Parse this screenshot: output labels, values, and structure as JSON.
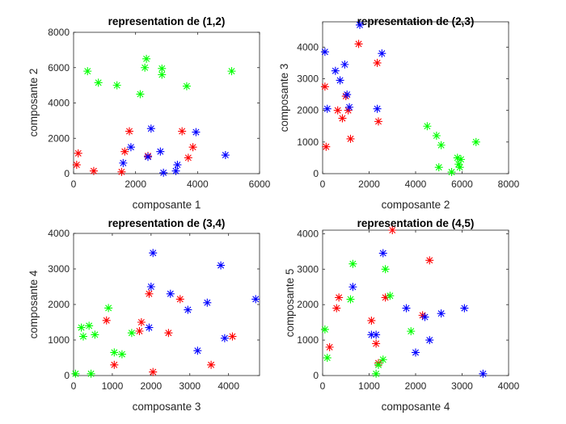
{
  "figure": {
    "background": "#ffffff"
  },
  "colors": {
    "group1": "#ff0000",
    "group2": "#0000ff",
    "group3": "#00ff00"
  },
  "chart_data": [
    {
      "type": "scatter",
      "title": "representation de (1,2)",
      "xlabel": "composante 1",
      "ylabel": "composante 2",
      "xlim": [
        0,
        6000
      ],
      "ylim": [
        0,
        8000
      ],
      "xticks": [
        0,
        2000,
        4000,
        6000
      ],
      "yticks": [
        0,
        2000,
        4000,
        6000,
        8000
      ],
      "marker": "*",
      "series": [
        {
          "color": "#ff0000",
          "points": [
            [
              150,
              1150
            ],
            [
              100,
              500
            ],
            [
              650,
              150
            ],
            [
              1550,
              100
            ],
            [
              1650,
              1250
            ],
            [
              1800,
              2400
            ],
            [
              2400,
              1000
            ],
            [
              3500,
              2400
            ],
            [
              3700,
              900
            ],
            [
              3850,
              1500
            ]
          ]
        },
        {
          "color": "#0000ff",
          "points": [
            [
              1600,
              600
            ],
            [
              1850,
              1500
            ],
            [
              2400,
              950
            ],
            [
              2500,
              2550
            ],
            [
              2800,
              1250
            ],
            [
              2900,
              50
            ],
            [
              3300,
              150
            ],
            [
              3350,
              500
            ],
            [
              3950,
              2350
            ],
            [
              4900,
              1050
            ]
          ]
        },
        {
          "color": "#00ff00",
          "points": [
            [
              450,
              5800
            ],
            [
              800,
              5150
            ],
            [
              1400,
              5000
            ],
            [
              2150,
              4500
            ],
            [
              2300,
              6000
            ],
            [
              2350,
              6500
            ],
            [
              2850,
              5950
            ],
            [
              2850,
              5600
            ],
            [
              3650,
              4950
            ],
            [
              5100,
              5800
            ]
          ]
        }
      ]
    },
    {
      "type": "scatter",
      "title": "representation de (2,3)",
      "xlabel": "composante 2",
      "ylabel": "composante 3",
      "xlim": [
        0,
        8000
      ],
      "ylim": [
        0,
        4800
      ],
      "xticks": [
        0,
        2000,
        4000,
        6000,
        8000
      ],
      "yticks": [
        0,
        1000,
        2000,
        3000,
        4000
      ],
      "marker": "*",
      "series": [
        {
          "color": "#ff0000",
          "points": [
            [
              100,
              2750
            ],
            [
              150,
              850
            ],
            [
              650,
              2000
            ],
            [
              850,
              1750
            ],
            [
              1000,
              2450
            ],
            [
              1100,
              2000
            ],
            [
              1200,
              1100
            ],
            [
              1550,
              4100
            ],
            [
              2350,
              3500
            ],
            [
              2400,
              1650
            ]
          ]
        },
        {
          "color": "#0000ff",
          "points": [
            [
              100,
              3850
            ],
            [
              200,
              2050
            ],
            [
              550,
              3250
            ],
            [
              750,
              2950
            ],
            [
              950,
              3450
            ],
            [
              1050,
              2500
            ],
            [
              1150,
              2100
            ],
            [
              1600,
              4700
            ],
            [
              2350,
              2050
            ],
            [
              2550,
              3800
            ]
          ]
        },
        {
          "color": "#00ff00",
          "points": [
            [
              4500,
              1500
            ],
            [
              4900,
              1200
            ],
            [
              5000,
              200
            ],
            [
              5100,
              900
            ],
            [
              5550,
              50
            ],
            [
              5800,
              500
            ],
            [
              5850,
              300
            ],
            [
              5950,
              450
            ],
            [
              5900,
              200
            ],
            [
              6600,
              1000
            ]
          ]
        }
      ]
    },
    {
      "type": "scatter",
      "title": "representation de (3,4)",
      "xlabel": "composante 3",
      "ylabel": "composante 4",
      "xlim": [
        0,
        4800
      ],
      "ylim": [
        0,
        4000
      ],
      "xticks": [
        0,
        1000,
        2000,
        3000,
        4000
      ],
      "yticks": [
        0,
        1000,
        2000,
        3000,
        4000
      ],
      "marker": "*",
      "series": [
        {
          "color": "#ff0000",
          "points": [
            [
              850,
              1550
            ],
            [
              1050,
              300
            ],
            [
              1700,
              1250
            ],
            [
              1750,
              1500
            ],
            [
              1950,
              2300
            ],
            [
              2050,
              100
            ],
            [
              2450,
              1200
            ],
            [
              2750,
              2150
            ],
            [
              3550,
              300
            ],
            [
              4100,
              1100
            ]
          ]
        },
        {
          "color": "#0000ff",
          "points": [
            [
              1950,
              1350
            ],
            [
              2000,
              2500
            ],
            [
              2050,
              3450
            ],
            [
              2500,
              2300
            ],
            [
              2950,
              1850
            ],
            [
              3200,
              700
            ],
            [
              3450,
              2050
            ],
            [
              3800,
              3100
            ],
            [
              3900,
              1050
            ],
            [
              4700,
              2150
            ]
          ]
        },
        {
          "color": "#00ff00",
          "points": [
            [
              50,
              50
            ],
            [
              200,
              1350
            ],
            [
              250,
              1100
            ],
            [
              400,
              1400
            ],
            [
              450,
              50
            ],
            [
              550,
              1150
            ],
            [
              900,
              1900
            ],
            [
              1050,
              650
            ],
            [
              1250,
              600
            ],
            [
              1500,
              1200
            ]
          ]
        }
      ]
    },
    {
      "type": "scatter",
      "title": "representation de (4,5)",
      "xlabel": "composante 4",
      "ylabel": "composante 5",
      "xlim": [
        0,
        4000
      ],
      "ylim": [
        0,
        4100
      ],
      "xticks": [
        0,
        1000,
        2000,
        3000,
        4000
      ],
      "yticks": [
        0,
        1000,
        2000,
        3000,
        4000
      ],
      "marker": "*",
      "series": [
        {
          "color": "#ff0000",
          "points": [
            [
              150,
              800
            ],
            [
              300,
              1900
            ],
            [
              350,
              2200
            ],
            [
              1050,
              1550
            ],
            [
              1150,
              900
            ],
            [
              1200,
              350
            ],
            [
              1350,
              2200
            ],
            [
              1500,
              4100
            ],
            [
              2150,
              1700
            ],
            [
              2300,
              3250
            ]
          ]
        },
        {
          "color": "#0000ff",
          "points": [
            [
              650,
              2500
            ],
            [
              1050,
              1150
            ],
            [
              1150,
              1150
            ],
            [
              1300,
              3450
            ],
            [
              1800,
              1900
            ],
            [
              2000,
              650
            ],
            [
              2200,
              1650
            ],
            [
              2300,
              1000
            ],
            [
              2550,
              1750
            ],
            [
              3050,
              1900
            ],
            [
              3450,
              50
            ]
          ]
        },
        {
          "color": "#00ff00",
          "points": [
            [
              50,
              1300
            ],
            [
              100,
              500
            ],
            [
              600,
              2150
            ],
            [
              650,
              3150
            ],
            [
              1150,
              50
            ],
            [
              1200,
              300
            ],
            [
              1300,
              450
            ],
            [
              1350,
              3000
            ],
            [
              1450,
              2250
            ],
            [
              1900,
              1250
            ]
          ]
        }
      ]
    }
  ]
}
